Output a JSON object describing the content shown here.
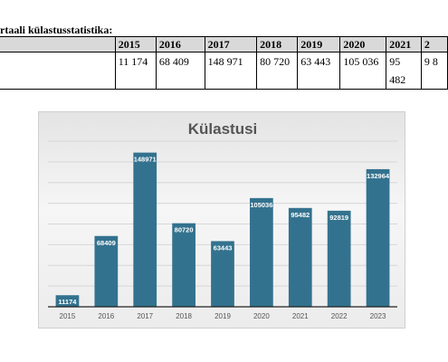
{
  "heading": "rtaali külastusstatistika:",
  "table": {
    "headers": [
      "",
      "2015",
      "2016",
      "2017",
      "2018",
      "2019",
      "2020",
      "2021",
      "2"
    ],
    "row": [
      "",
      "11 174",
      "68 409",
      "148 971",
      "80 720",
      "63 443",
      "105 036",
      "95 482",
      "9 8"
    ]
  },
  "chart_data": {
    "type": "bar",
    "title": "Külastusi",
    "categories": [
      "2015",
      "2016",
      "2017",
      "2018",
      "2019",
      "2020",
      "2021",
      "2022",
      "2023"
    ],
    "values": [
      11174,
      68409,
      148971,
      80720,
      63443,
      105036,
      95482,
      92819,
      132964
    ],
    "data_labels": [
      "11174",
      "68409",
      "148971",
      "80720",
      "63443",
      "105036",
      "95482",
      "92819",
      "132964"
    ],
    "ylim": [
      0,
      160000
    ],
    "grid": true,
    "legend": "none",
    "bar_color": "#33728e",
    "label_color": "#ffffff"
  }
}
